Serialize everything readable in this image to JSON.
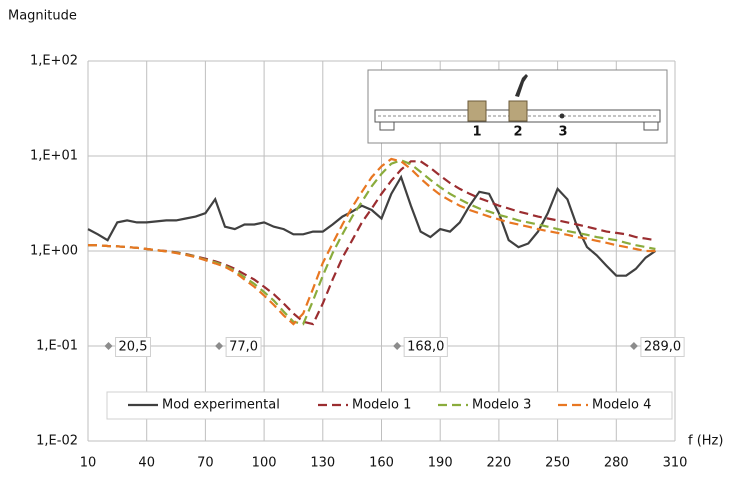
{
  "chart_data": {
    "type": "line",
    "y_label": "Magnitude",
    "x_label": "f (Hz)",
    "log_y": true,
    "grid": true,
    "xlim": [
      10,
      310
    ],
    "xticks": [
      10,
      40,
      70,
      100,
      130,
      160,
      190,
      220,
      250,
      280,
      310
    ],
    "ylim": [
      0.01,
      100
    ],
    "yticks": [
      {
        "value": 0.01,
        "label": "1,E-02"
      },
      {
        "value": 0.1,
        "label": "1,E-01"
      },
      {
        "value": 1,
        "label": "1,E+00"
      },
      {
        "value": 10,
        "label": "1,E+01"
      },
      {
        "value": 100,
        "label": "1,E+02"
      }
    ],
    "x": [
      10,
      15,
      20,
      25,
      30,
      35,
      40,
      45,
      50,
      55,
      60,
      65,
      70,
      75,
      80,
      85,
      90,
      95,
      100,
      105,
      110,
      115,
      120,
      125,
      130,
      135,
      140,
      145,
      150,
      155,
      160,
      165,
      170,
      175,
      180,
      185,
      190,
      195,
      200,
      205,
      210,
      215,
      220,
      225,
      230,
      235,
      240,
      245,
      250,
      255,
      260,
      265,
      270,
      275,
      280,
      285,
      290,
      295,
      300
    ],
    "series": [
      {
        "name": "Mod experimental",
        "color": "#404040",
        "dash": false,
        "values": [
          1.7,
          1.5,
          1.3,
          2.0,
          2.1,
          2.0,
          2.0,
          2.05,
          2.1,
          2.1,
          2.2,
          2.3,
          2.5,
          3.5,
          1.8,
          1.7,
          1.9,
          1.9,
          2.0,
          1.8,
          1.7,
          1.5,
          1.5,
          1.6,
          1.6,
          1.9,
          2.3,
          2.6,
          3.0,
          2.7,
          2.2,
          4.0,
          6.0,
          3.0,
          1.6,
          1.4,
          1.7,
          1.6,
          2.0,
          3.0,
          4.2,
          4.0,
          2.5,
          1.3,
          1.1,
          1.2,
          1.6,
          2.5,
          4.5,
          3.5,
          1.8,
          1.1,
          0.9,
          0.7,
          0.55,
          0.55,
          0.65,
          0.85,
          1.0
        ]
      },
      {
        "name": "Modelo 1",
        "color": "#9b2d30",
        "dash": true,
        "values": [
          1.15,
          1.15,
          1.13,
          1.12,
          1.1,
          1.08,
          1.05,
          1.02,
          1.0,
          0.97,
          0.93,
          0.88,
          0.83,
          0.78,
          0.72,
          0.65,
          0.57,
          0.5,
          0.42,
          0.35,
          0.28,
          0.22,
          0.18,
          0.17,
          0.28,
          0.5,
          0.85,
          1.3,
          2.0,
          2.8,
          4.0,
          5.5,
          7.2,
          8.8,
          8.8,
          7.5,
          6.2,
          5.2,
          4.5,
          4.0,
          3.6,
          3.3,
          3.0,
          2.8,
          2.6,
          2.45,
          2.3,
          2.2,
          2.1,
          2.0,
          1.9,
          1.8,
          1.7,
          1.6,
          1.55,
          1.5,
          1.4,
          1.35,
          1.3
        ]
      },
      {
        "name": "Modelo 3",
        "color": "#8aac3c",
        "dash": true,
        "values": [
          1.15,
          1.15,
          1.13,
          1.12,
          1.1,
          1.08,
          1.05,
          1.02,
          0.99,
          0.96,
          0.92,
          0.87,
          0.81,
          0.76,
          0.7,
          0.62,
          0.53,
          0.45,
          0.37,
          0.3,
          0.23,
          0.18,
          0.17,
          0.3,
          0.55,
          0.95,
          1.5,
          2.3,
          3.3,
          4.8,
          6.5,
          8.3,
          9.0,
          8.2,
          6.8,
          5.6,
          4.7,
          4.0,
          3.5,
          3.1,
          2.8,
          2.6,
          2.4,
          2.25,
          2.1,
          2.0,
          1.9,
          1.8,
          1.7,
          1.62,
          1.55,
          1.48,
          1.4,
          1.35,
          1.3,
          1.22,
          1.15,
          1.1,
          1.05
        ]
      },
      {
        "name": "Modelo 4",
        "color": "#e87722",
        "dash": true,
        "values": [
          1.15,
          1.15,
          1.13,
          1.12,
          1.1,
          1.08,
          1.05,
          1.02,
          0.99,
          0.95,
          0.91,
          0.86,
          0.8,
          0.74,
          0.68,
          0.6,
          0.5,
          0.42,
          0.34,
          0.27,
          0.21,
          0.17,
          0.22,
          0.4,
          0.75,
          1.2,
          1.9,
          2.9,
          4.2,
          6.0,
          7.8,
          9.3,
          8.8,
          7.3,
          5.8,
          4.7,
          3.9,
          3.4,
          3.0,
          2.7,
          2.5,
          2.3,
          2.15,
          2.0,
          1.9,
          1.8,
          1.7,
          1.62,
          1.55,
          1.48,
          1.4,
          1.35,
          1.28,
          1.22,
          1.15,
          1.1,
          1.05,
          1.0,
          1.0
        ]
      }
    ],
    "annotations": [
      {
        "x": 20.5,
        "y": 0.1,
        "label": "20,5"
      },
      {
        "x": 77.0,
        "y": 0.1,
        "label": "77,0"
      },
      {
        "x": 168.0,
        "y": 0.1,
        "label": "168,0"
      },
      {
        "x": 289.0,
        "y": 0.1,
        "label": "289,0"
      }
    ],
    "inset_labels": [
      "1",
      "2",
      "3"
    ]
  }
}
